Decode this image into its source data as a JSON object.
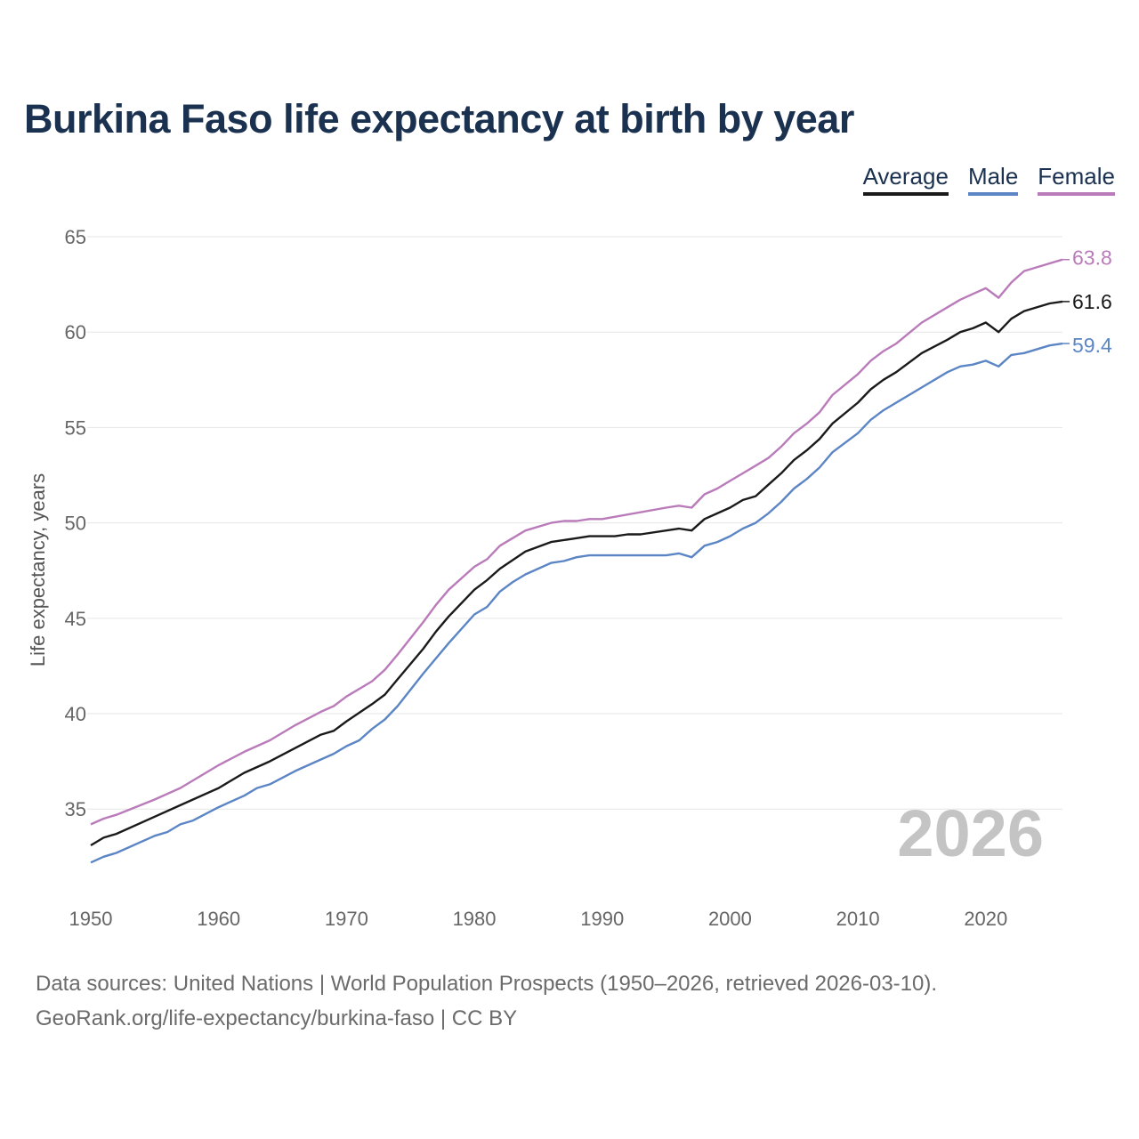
{
  "title": "Burkina Faso life expectancy at birth by year",
  "legend": [
    {
      "label": "Average",
      "color": "#1a1a1a"
    },
    {
      "label": "Male",
      "color": "#5b85c4"
    },
    {
      "label": "Female",
      "color": "#b97bb9"
    }
  ],
  "footer": {
    "line1": "Data sources: United Nations | World Population Prospects (1950–2026, retrieved 2026-03-10).",
    "line2": "GeoRank.org/life-expectancy/burkina-faso | CC BY"
  },
  "chart_data": {
    "type": "line",
    "title": "Burkina Faso life expectancy at birth by year",
    "ylabel": "Life expectancy, years",
    "xlabel": "",
    "xlim": [
      1950,
      2026
    ],
    "ylim": [
      31,
      65
    ],
    "yticks": [
      35,
      40,
      45,
      50,
      55,
      60,
      65
    ],
    "xticks": [
      1950,
      1960,
      1970,
      1980,
      1990,
      2000,
      2010,
      2020
    ],
    "grid": true,
    "year_label": "2026",
    "series": [
      {
        "name": "Female",
        "color": "#b97bb9",
        "end_label": "63.8",
        "x": [
          1950,
          1951,
          1952,
          1955,
          1957,
          1960,
          1962,
          1964,
          1966,
          1968,
          1969,
          1970,
          1972,
          1973,
          1974,
          1976,
          1977,
          1978,
          1980,
          1981,
          1982,
          1984,
          1986,
          1987,
          1988,
          1989,
          1990,
          1995,
          1996,
          1997,
          1998,
          1999,
          2000,
          2001,
          2002,
          2003,
          2004,
          2005,
          2006,
          2007,
          2008,
          2010,
          2011,
          2012,
          2013,
          2015,
          2017,
          2018,
          2019,
          2020,
          2021,
          2022,
          2023,
          2025,
          2026
        ],
        "values": [
          34.2,
          34.5,
          34.7,
          35.5,
          36.1,
          37.3,
          38.0,
          38.6,
          39.4,
          40.1,
          40.4,
          40.9,
          41.7,
          42.3,
          43.1,
          44.8,
          45.7,
          46.5,
          47.7,
          48.1,
          48.8,
          49.6,
          50.0,
          50.1,
          50.1,
          50.2,
          50.2,
          50.8,
          50.9,
          50.8,
          51.5,
          51.8,
          52.2,
          52.6,
          53.0,
          53.4,
          54.0,
          54.7,
          55.2,
          55.8,
          56.7,
          57.8,
          58.5,
          59.0,
          59.4,
          60.5,
          61.3,
          61.7,
          62.0,
          62.3,
          61.8,
          62.6,
          63.2,
          63.6,
          63.8
        ]
      },
      {
        "name": "Average",
        "color": "#1a1a1a",
        "end_label": "61.6",
        "x": [
          1950,
          1951,
          1952,
          1955,
          1957,
          1960,
          1962,
          1964,
          1966,
          1968,
          1969,
          1970,
          1972,
          1973,
          1974,
          1976,
          1977,
          1978,
          1980,
          1981,
          1982,
          1984,
          1986,
          1988,
          1989,
          1990,
          1991,
          1992,
          1993,
          1995,
          1996,
          1997,
          1998,
          1999,
          2000,
          2001,
          2002,
          2003,
          2004,
          2005,
          2006,
          2007,
          2008,
          2010,
          2011,
          2012,
          2013,
          2015,
          2017,
          2018,
          2019,
          2020,
          2021,
          2022,
          2023,
          2025,
          2026
        ],
        "values": [
          33.1,
          33.5,
          33.7,
          34.6,
          35.2,
          36.1,
          36.9,
          37.5,
          38.2,
          38.9,
          39.1,
          39.6,
          40.5,
          41.0,
          41.8,
          43.4,
          44.3,
          45.1,
          46.5,
          47.0,
          47.6,
          48.5,
          49.0,
          49.2,
          49.3,
          49.3,
          49.3,
          49.4,
          49.4,
          49.6,
          49.7,
          49.6,
          50.2,
          50.5,
          50.8,
          51.2,
          51.4,
          52.0,
          52.6,
          53.3,
          53.8,
          54.4,
          55.2,
          56.3,
          57.0,
          57.5,
          57.9,
          58.9,
          59.6,
          60.0,
          60.2,
          60.5,
          60.0,
          60.7,
          61.1,
          61.5,
          61.6
        ]
      },
      {
        "name": "Male",
        "color": "#5b85c4",
        "end_label": "59.4",
        "x": [
          1950,
          1951,
          1952,
          1955,
          1956,
          1957,
          1958,
          1960,
          1962,
          1963,
          1964,
          1966,
          1968,
          1969,
          1970,
          1971,
          1972,
          1973,
          1974,
          1976,
          1977,
          1978,
          1980,
          1981,
          1982,
          1983,
          1984,
          1986,
          1987,
          1988,
          1989,
          1990,
          1995,
          1996,
          1997,
          1998,
          1999,
          2000,
          2001,
          2002,
          2003,
          2004,
          2005,
          2006,
          2007,
          2008,
          2010,
          2011,
          2012,
          2013,
          2015,
          2017,
          2018,
          2019,
          2020,
          2021,
          2022,
          2023,
          2025,
          2026
        ],
        "values": [
          32.2,
          32.5,
          32.7,
          33.6,
          33.8,
          34.2,
          34.4,
          35.1,
          35.7,
          36.1,
          36.3,
          37.0,
          37.6,
          37.9,
          38.3,
          38.6,
          39.2,
          39.7,
          40.4,
          42.1,
          42.9,
          43.7,
          45.2,
          45.6,
          46.4,
          46.9,
          47.3,
          47.9,
          48.0,
          48.2,
          48.3,
          48.3,
          48.3,
          48.4,
          48.2,
          48.8,
          49.0,
          49.3,
          49.7,
          50.0,
          50.5,
          51.1,
          51.8,
          52.3,
          52.9,
          53.7,
          54.7,
          55.4,
          55.9,
          56.3,
          57.1,
          57.9,
          58.2,
          58.3,
          58.5,
          58.2,
          58.8,
          58.9,
          59.3,
          59.4
        ]
      }
    ]
  }
}
